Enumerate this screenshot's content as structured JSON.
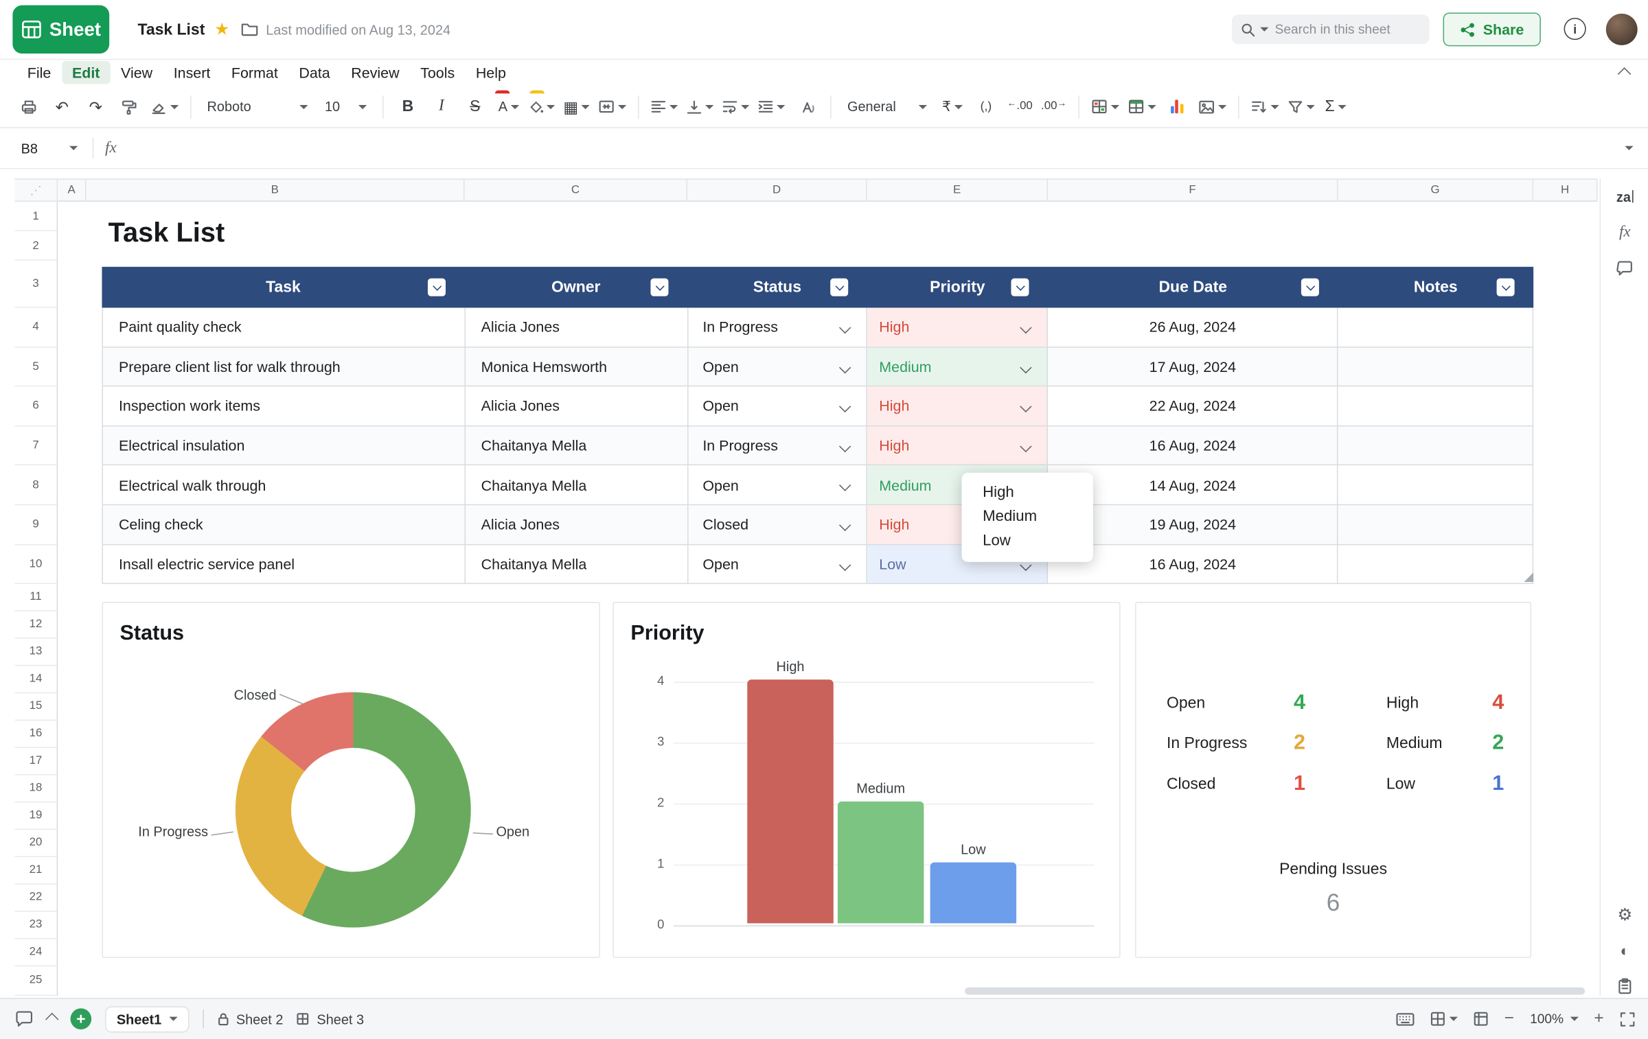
{
  "app": {
    "logo_text": "Sheet",
    "doc_title": "Task List",
    "last_modified": "Last modified on Aug 13, 2024",
    "search_placeholder": "Search in this sheet",
    "share_label": "Share"
  },
  "menubar": {
    "items": [
      "File",
      "Edit",
      "View",
      "Insert",
      "Format",
      "Data",
      "Review",
      "Tools",
      "Help"
    ],
    "active": "Edit"
  },
  "toolbar": {
    "font_name": "Roboto",
    "font_size": "10",
    "number_format": "General",
    "bold": "B",
    "italic": "I",
    "strike": "S",
    "text_color": "A",
    "currency": "₹",
    "comma": "(,)",
    "decimal_dec": ".00",
    "decimal_inc": ".00",
    "sum": "Σ"
  },
  "formula_bar": {
    "cell_ref": "B8",
    "fx_label": "fx",
    "value": ""
  },
  "grid": {
    "columns": [
      "A",
      "B",
      "C",
      "D",
      "E",
      "F",
      "G",
      "H"
    ],
    "rows": [
      "1",
      "2",
      "3",
      "4",
      "5",
      "6",
      "7",
      "8",
      "9",
      "10",
      "11",
      "12",
      "13",
      "14",
      "15",
      "16",
      "17",
      "18",
      "19",
      "20",
      "21",
      "22",
      "23",
      "24",
      "25"
    ]
  },
  "sheet": {
    "title": "Task List",
    "table": {
      "headers": [
        "Task",
        "Owner",
        "Status",
        "Priority",
        "Due Date",
        "Notes"
      ],
      "rows": [
        {
          "task": "Paint quality check",
          "owner": "Alicia Jones",
          "status": "In Progress",
          "priority": "High",
          "due": "26 Aug, 2024",
          "notes": ""
        },
        {
          "task": "Prepare client list for walk through",
          "owner": "Monica Hemsworth",
          "status": "Open",
          "priority": "Medium",
          "due": "17 Aug, 2024",
          "notes": ""
        },
        {
          "task": "Inspection work items",
          "owner": "Alicia Jones",
          "status": "Open",
          "priority": "High",
          "due": "22 Aug, 2024",
          "notes": ""
        },
        {
          "task": "Electrical insulation",
          "owner": "Chaitanya Mella",
          "status": "In Progress",
          "priority": "High",
          "due": "16 Aug, 2024",
          "notes": ""
        },
        {
          "task": "Electrical walk through",
          "owner": "Chaitanya Mella",
          "status": "Open",
          "priority": "Medium",
          "due": "14 Aug, 2024",
          "notes": ""
        },
        {
          "task": "Celing check",
          "owner": "Alicia Jones",
          "status": "Closed",
          "priority": "High",
          "due": "19 Aug, 2024",
          "notes": ""
        },
        {
          "task": "Insall electric service panel",
          "owner": "Chaitanya Mella",
          "status": "Open",
          "priority": "Low",
          "due": "16 Aug, 2024",
          "notes": ""
        }
      ]
    },
    "priority_styles": {
      "High": {
        "bg": "#fdeceb",
        "fg": "#d5493a"
      },
      "Medium": {
        "bg": "#e7f4ec",
        "fg": "#2f9e5f"
      },
      "Low": {
        "bg": "#e8effc",
        "fg": "#5a6e9e"
      }
    },
    "priority_dropdown": {
      "options": [
        "High",
        "Medium",
        "Low"
      ]
    }
  },
  "chart_data": [
    {
      "type": "pie",
      "donut": true,
      "title": "Status",
      "labels": [
        "Open",
        "In Progress",
        "Closed"
      ],
      "values": [
        4,
        2,
        1
      ],
      "colors": [
        "#6aaa5e",
        "#e3b341",
        "#e0746a"
      ]
    },
    {
      "type": "bar",
      "title": "Priority",
      "categories": [
        "High",
        "Medium",
        "Low"
      ],
      "values": [
        4,
        2,
        1
      ],
      "colors": [
        "#c9625a",
        "#7cc482",
        "#6d9eeb"
      ],
      "ylim": [
        0,
        4
      ],
      "yticks": [
        "4",
        "3",
        "2",
        "1",
        "0"
      ],
      "grid": true
    }
  ],
  "summary": {
    "status_counts": [
      {
        "label": "Open",
        "value": "4",
        "color": "#34a853"
      },
      {
        "label": "In Progress",
        "value": "2",
        "color": "#e2a93b"
      },
      {
        "label": "Closed",
        "value": "1",
        "color": "#e25041"
      }
    ],
    "priority_counts": [
      {
        "label": "High",
        "value": "4",
        "color": "#d84b3c"
      },
      {
        "label": "Medium",
        "value": "2",
        "color": "#34a853"
      },
      {
        "label": "Low",
        "value": "1",
        "color": "#4a73d1"
      }
    ],
    "pending_label": "Pending Issues",
    "pending_value": "6"
  },
  "statusbar": {
    "tabs": [
      {
        "label": "Sheet1",
        "active": true
      },
      {
        "label": "Sheet 2",
        "active": false
      },
      {
        "label": "Sheet 3",
        "active": false
      }
    ],
    "zoom": "100%"
  },
  "icons": {
    "undo": "↶",
    "redo": "↷",
    "borders": "▦",
    "gear": "⚙",
    "theme": "◐",
    "star": "★",
    "corner_dots": "⋰",
    "minus": "−",
    "plus": "+",
    "info": "i",
    "decrease_decimal_arrow": "←",
    "increase_decimal_arrow": "→",
    "zia": "za"
  }
}
